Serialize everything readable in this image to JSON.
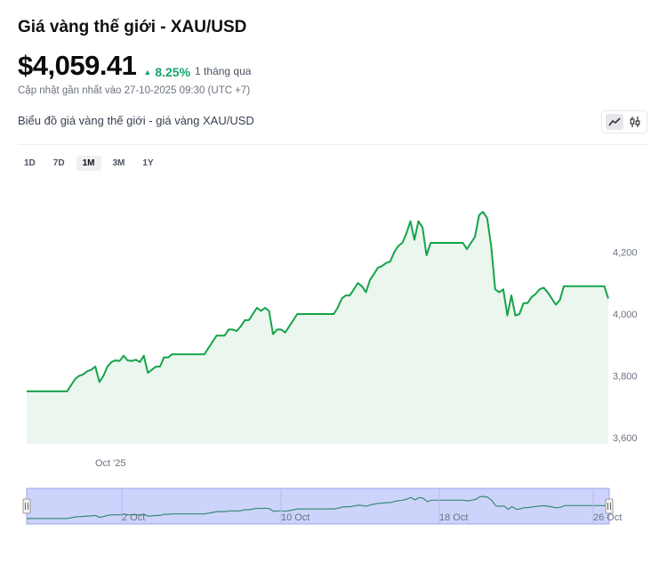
{
  "header": {
    "title": "Giá vàng thế giới - XAU/USD",
    "price": "$4,059.41",
    "change": "8.25%",
    "period": "1 tháng qua",
    "updated": "Cập nhật gần nhất vào 27-10-2025 09:30 (UTC +7)",
    "subtitle": "Biểu đồ giá vàng thế giới - giá vàng XAU/USD"
  },
  "ranges": [
    {
      "label": "1D",
      "active": false
    },
    {
      "label": "7D",
      "active": false
    },
    {
      "label": "1M",
      "active": true
    },
    {
      "label": "3M",
      "active": false
    },
    {
      "label": "1Y",
      "active": false
    }
  ],
  "chart_type_buttons": [
    {
      "icon": "line-chart-icon",
      "active": true
    },
    {
      "icon": "candlestick-icon",
      "active": false
    }
  ],
  "colors": {
    "line": "#16a34a",
    "area": "#eaf6ee",
    "positive": "#16a36a",
    "navigator_bg": "#cdd3fb",
    "navigator_border": "#9ea6e8"
  },
  "chart_data": {
    "type": "area",
    "title": "",
    "xlabel": "",
    "ylabel": "",
    "ylim": [
      3580,
      4440
    ],
    "y_ticks": [
      3600,
      3800,
      4000,
      4200
    ],
    "y_tick_labels": [
      "3,600",
      "3,800",
      "4,000",
      "4,200"
    ],
    "x_tick_labels": [
      "Oct '25"
    ],
    "navigator_labels": [
      "2 Oct",
      "10 Oct",
      "18 Oct",
      "26 Oct"
    ],
    "series": [
      {
        "values": [
          3750,
          3750,
          3750,
          3750,
          3750,
          3750,
          3750,
          3750,
          3750,
          3750,
          3750,
          3770,
          3790,
          3800,
          3805,
          3815,
          3820,
          3830,
          3780,
          3800,
          3830,
          3845,
          3850,
          3848,
          3865,
          3850,
          3848,
          3852,
          3845,
          3865,
          3810,
          3820,
          3830,
          3830,
          3860,
          3860,
          3870,
          3870,
          3870,
          3870,
          3870,
          3870,
          3870,
          3870,
          3870,
          3890,
          3910,
          3930,
          3930,
          3930,
          3950,
          3950,
          3945,
          3960,
          3980,
          3980,
          4000,
          4020,
          4010,
          4020,
          4010,
          3935,
          3950,
          3950,
          3940,
          3960,
          3980,
          4000,
          4000,
          4000,
          4000,
          4000,
          4000,
          4000,
          4000,
          4000,
          4000,
          4020,
          4050,
          4060,
          4060,
          4080,
          4100,
          4090,
          4070,
          4110,
          4130,
          4150,
          4155,
          4165,
          4170,
          4200,
          4220,
          4230,
          4260,
          4300,
          4240,
          4300,
          4280,
          4190,
          4230,
          4230,
          4230,
          4230,
          4230,
          4230,
          4230,
          4230,
          4230,
          4210,
          4230,
          4250,
          4320,
          4330,
          4310,
          4220,
          4080,
          4070,
          4080,
          3995,
          4060,
          3995,
          4000,
          4035,
          4035,
          4055,
          4065,
          4080,
          4085,
          4070,
          4050,
          4030,
          4045,
          4090,
          4090,
          4090,
          4090,
          4090,
          4090,
          4090,
          4090,
          4090,
          4090,
          4090,
          4050
        ]
      }
    ]
  }
}
